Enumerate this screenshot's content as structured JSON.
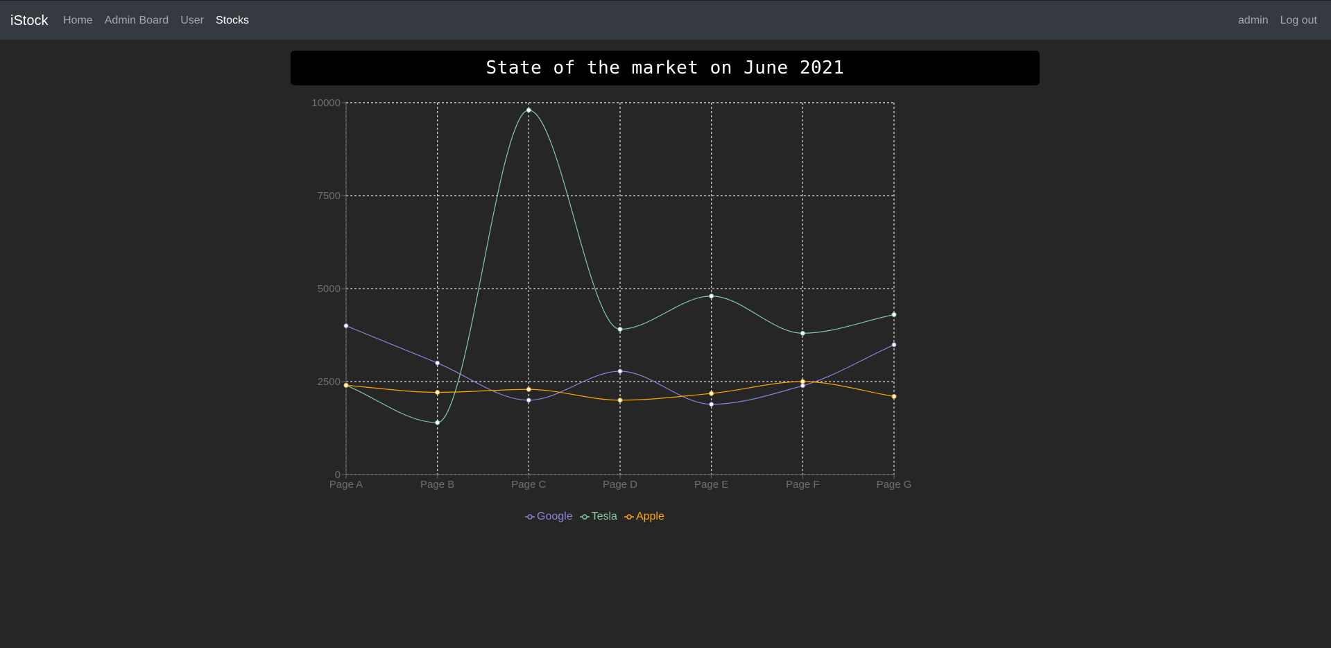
{
  "navbar": {
    "brand": "iStock",
    "left_links": [
      {
        "label": "Home",
        "active": false
      },
      {
        "label": "Admin Board",
        "active": false
      },
      {
        "label": "User",
        "active": false
      },
      {
        "label": "Stocks",
        "active": true
      }
    ],
    "right_links": [
      {
        "label": "admin"
      },
      {
        "label": "Log out"
      }
    ]
  },
  "banner": {
    "title": "State of the market on June 2021"
  },
  "colors": {
    "background": "#262626",
    "navbar": "#343a40",
    "grid": "#d9d9d9",
    "axis_text": "#6f6f6f",
    "google": "#8884d8",
    "tesla": "#82ca9d",
    "apple": "#ffa500"
  },
  "chart_data": {
    "type": "line",
    "categories": [
      "Page A",
      "Page B",
      "Page C",
      "Page D",
      "Page E",
      "Page F",
      "Page G"
    ],
    "ylim": [
      0,
      10000
    ],
    "yticks": [
      0,
      2500,
      5000,
      7500,
      10000
    ],
    "grid": true,
    "grid_style": "dashed",
    "legend_position": "bottom-center",
    "series": [
      {
        "name": "Google",
        "color": "#8884d8",
        "values": [
          4000,
          3000,
          2000,
          2780,
          1890,
          2390,
          3490
        ]
      },
      {
        "name": "Tesla",
        "color": "#82ca9d",
        "values": [
          2400,
          1398,
          9800,
          3908,
          4800,
          3800,
          4300
        ]
      },
      {
        "name": "Apple",
        "color": "#ffa500",
        "values": [
          2400,
          2210,
          2290,
          2000,
          2181,
          2500,
          2100
        ]
      }
    ]
  }
}
